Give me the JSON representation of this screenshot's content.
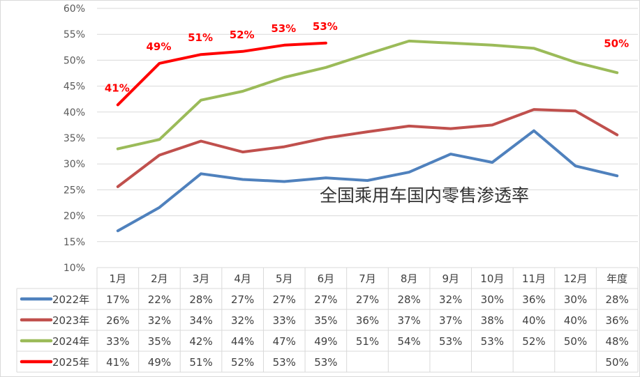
{
  "chart_data": {
    "type": "line",
    "title": "",
    "overlay_text": "全国乘用车国内零售渗透率",
    "categories": [
      "1月",
      "2月",
      "3月",
      "4月",
      "5月",
      "6月",
      "7月",
      "8月",
      "9月",
      "10月",
      "11月",
      "12月",
      "年度"
    ],
    "y_ticks": [
      "10%",
      "15%",
      "20%",
      "25%",
      "30%",
      "35%",
      "40%",
      "45%",
      "50%",
      "55%",
      "60%"
    ],
    "ylim": [
      10,
      60
    ],
    "grid": true,
    "legend_placement": "data-table",
    "series": [
      {
        "name": "2022年",
        "color": "#4f81bd",
        "values": [
          17.1,
          21.6,
          28.1,
          27.0,
          26.6,
          27.3,
          26.8,
          28.4,
          31.9,
          30.3,
          36.4,
          29.6,
          27.7
        ],
        "table": [
          "17%",
          "22%",
          "28%",
          "27%",
          "27%",
          "27%",
          "27%",
          "28%",
          "32%",
          "30%",
          "36%",
          "30%",
          "28%"
        ]
      },
      {
        "name": "2023年",
        "color": "#c0504d",
        "values": [
          25.6,
          31.7,
          34.4,
          32.3,
          33.3,
          35.0,
          36.2,
          37.3,
          36.8,
          37.5,
          40.5,
          40.2,
          35.6
        ],
        "table": [
          "26%",
          "32%",
          "34%",
          "32%",
          "33%",
          "35%",
          "36%",
          "37%",
          "37%",
          "38%",
          "40%",
          "40%",
          "36%"
        ]
      },
      {
        "name": "2024年",
        "color": "#9bbb59",
        "values": [
          32.9,
          34.7,
          42.3,
          44.0,
          46.7,
          48.6,
          51.2,
          53.7,
          53.3,
          52.9,
          52.3,
          49.6,
          47.6
        ],
        "table": [
          "33%",
          "35%",
          "42%",
          "44%",
          "47%",
          "49%",
          "51%",
          "54%",
          "53%",
          "53%",
          "52%",
          "50%",
          "48%"
        ]
      },
      {
        "name": "2025年",
        "color": "#ff0000",
        "values": [
          41.4,
          49.4,
          51.1,
          51.7,
          52.9,
          53.3,
          null,
          null,
          null,
          null,
          null,
          null,
          50.0
        ],
        "table": [
          "41%",
          "49%",
          "51%",
          "52%",
          "53%",
          "53%",
          "",
          "",
          "",
          "",
          "",
          "",
          "50%"
        ],
        "data_labels": [
          "41%",
          "49%",
          "51%",
          "52%",
          "53%",
          "53%",
          "",
          "",
          "",
          "",
          "",
          "",
          "50%"
        ],
        "annual_marker": "none"
      }
    ]
  }
}
